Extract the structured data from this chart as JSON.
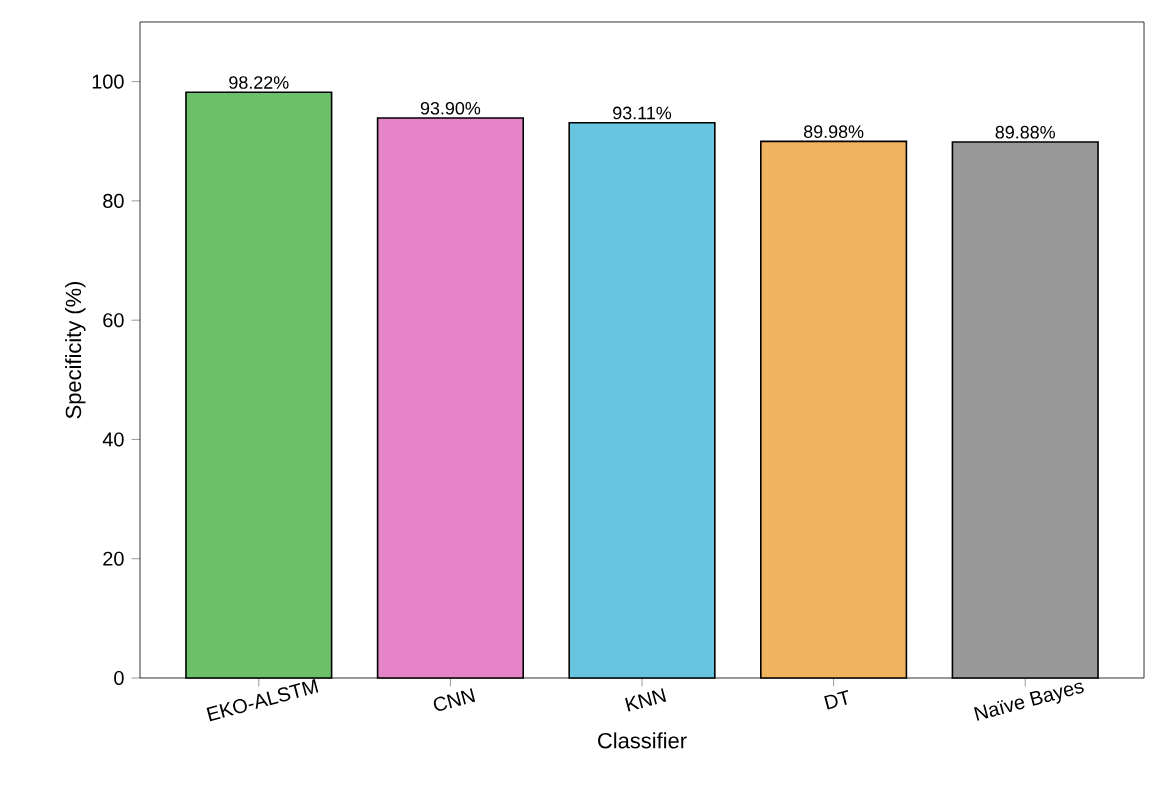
{
  "chart_data": {
    "type": "bar",
    "xlabel": "Classifier",
    "ylabel": "Specificity (%)",
    "categories": [
      "EKO-ALSTM",
      "CNN",
      "KNN",
      "DT",
      "Naïve Bayes"
    ],
    "values": [
      98.22,
      93.9,
      93.11,
      89.98,
      89.88
    ],
    "colors": [
      "#6cc06a",
      "#e585c8",
      "#68c5e0",
      "#f0b35e",
      "#999999"
    ],
    "value_labels": [
      "98.22%",
      "93.90%",
      "93.11%",
      "89.98%",
      "89.88%"
    ],
    "ylim": [
      0,
      110
    ],
    "yticks": [
      0,
      20,
      40,
      60,
      80,
      100
    ]
  }
}
